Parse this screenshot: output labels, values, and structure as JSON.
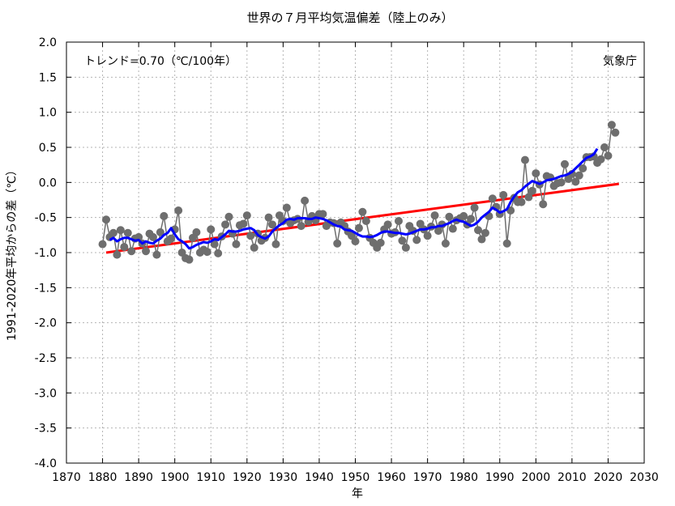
{
  "chart_data": {
    "type": "line",
    "title": "世界の７月平均気温偏差（陸上のみ）",
    "xlabel": "年",
    "ylabel": "1991-2020年平均からの差（℃）",
    "trend_label": "トレンド=0.70（℃/100年）",
    "source_label": "気象庁",
    "xlim": [
      1870,
      2030
    ],
    "ylim": [
      -4.0,
      2.0
    ],
    "x_ticks": [
      1870,
      1880,
      1890,
      1900,
      1910,
      1920,
      1930,
      1940,
      1950,
      1960,
      1970,
      1980,
      1990,
      2000,
      2010,
      2020,
      2030
    ],
    "y_ticks": [
      "2.0",
      "1.5",
      "1.0",
      "0.5",
      "0.0",
      "-0.5",
      "-1.0",
      "-1.5",
      "-2.0",
      "-2.5",
      "-3.0",
      "-3.5",
      "-4.0"
    ],
    "grid": true,
    "series": [
      {
        "role": "annual",
        "color": "#6e6e6e",
        "x_start": 1880,
        "values": [
          -0.88,
          -0.53,
          -0.78,
          -0.72,
          -1.03,
          -0.68,
          -0.92,
          -0.72,
          -0.98,
          -0.8,
          -0.78,
          -0.87,
          -0.98,
          -0.73,
          -0.78,
          -1.03,
          -0.71,
          -0.48,
          -0.84,
          -0.8,
          -0.67,
          -0.4,
          -1.0,
          -1.08,
          -1.1,
          -0.79,
          -0.71,
          -1.0,
          -0.96,
          -0.99,
          -0.67,
          -0.88,
          -1.01,
          -0.77,
          -0.6,
          -0.49,
          -0.73,
          -0.88,
          -0.61,
          -0.59,
          -0.47,
          -0.76,
          -0.93,
          -0.73,
          -0.83,
          -0.79,
          -0.5,
          -0.6,
          -0.88,
          -0.47,
          -0.55,
          -0.36,
          -0.58,
          -0.54,
          -0.52,
          -0.62,
          -0.26,
          -0.56,
          -0.48,
          -0.54,
          -0.45,
          -0.45,
          -0.62,
          -0.57,
          -0.58,
          -0.87,
          -0.57,
          -0.62,
          -0.7,
          -0.76,
          -0.84,
          -0.65,
          -0.42,
          -0.55,
          -0.79,
          -0.86,
          -0.93,
          -0.86,
          -0.67,
          -0.6,
          -0.73,
          -0.71,
          -0.55,
          -0.83,
          -0.93,
          -0.62,
          -0.69,
          -0.82,
          -0.59,
          -0.67,
          -0.76,
          -0.63,
          -0.47,
          -0.69,
          -0.6,
          -0.87,
          -0.49,
          -0.66,
          -0.54,
          -0.51,
          -0.48,
          -0.6,
          -0.52,
          -0.36,
          -0.68,
          -0.81,
          -0.72,
          -0.48,
          -0.23,
          -0.35,
          -0.45,
          -0.18,
          -0.87,
          -0.4,
          -0.22,
          -0.28,
          -0.28,
          0.32,
          -0.21,
          -0.12,
          0.13,
          -0.03,
          -0.31,
          0.09,
          0.07,
          -0.05,
          -0.01,
          0.0,
          0.26,
          0.05,
          0.12,
          0.01,
          0.1,
          0.2,
          0.36,
          0.36,
          0.37,
          0.28,
          0.33,
          0.5,
          0.38,
          0.82,
          0.71
        ]
      },
      {
        "role": "moving-average",
        "color": "#0000ff",
        "x_start": 1882,
        "values": [
          -0.82,
          -0.79,
          -0.84,
          -0.81,
          -0.79,
          -0.79,
          -0.81,
          -0.83,
          -0.82,
          -0.87,
          -0.84,
          -0.86,
          -0.87,
          -0.83,
          -0.8,
          -0.75,
          -0.72,
          -0.65,
          -0.74,
          -0.81,
          -0.84,
          -0.88,
          -0.94,
          -0.92,
          -0.89,
          -0.87,
          -0.85,
          -0.86,
          -0.84,
          -0.81,
          -0.82,
          -0.78,
          -0.74,
          -0.69,
          -0.7,
          -0.7,
          -0.69,
          -0.67,
          -0.66,
          -0.65,
          -0.68,
          -0.75,
          -0.78,
          -0.8,
          -0.77,
          -0.7,
          -0.65,
          -0.61,
          -0.58,
          -0.53,
          -0.52,
          -0.53,
          -0.51,
          -0.51,
          -0.51,
          -0.52,
          -0.52,
          -0.5,
          -0.51,
          -0.52,
          -0.54,
          -0.57,
          -0.6,
          -0.62,
          -0.63,
          -0.67,
          -0.68,
          -0.69,
          -0.72,
          -0.75,
          -0.77,
          -0.77,
          -0.78,
          -0.77,
          -0.75,
          -0.72,
          -0.7,
          -0.7,
          -0.71,
          -0.72,
          -0.72,
          -0.73,
          -0.74,
          -0.73,
          -0.71,
          -0.69,
          -0.67,
          -0.67,
          -0.66,
          -0.64,
          -0.64,
          -0.62,
          -0.62,
          -0.6,
          -0.58,
          -0.55,
          -0.53,
          -0.55,
          -0.56,
          -0.59,
          -0.62,
          -0.6,
          -0.56,
          -0.5,
          -0.46,
          -0.42,
          -0.36,
          -0.39,
          -0.43,
          -0.41,
          -0.38,
          -0.28,
          -0.2,
          -0.14,
          -0.11,
          -0.06,
          -0.02,
          0.02,
          0.0,
          -0.02,
          0.0,
          0.03,
          0.04,
          0.05,
          0.07,
          0.09,
          0.1,
          0.12,
          0.15,
          0.2,
          0.25,
          0.3,
          0.35,
          0.37,
          0.4,
          0.48
        ]
      },
      {
        "role": "trend",
        "color": "#ff0000",
        "x": [
          1881,
          2023
        ],
        "y": [
          -1.0,
          -0.02
        ]
      }
    ]
  }
}
